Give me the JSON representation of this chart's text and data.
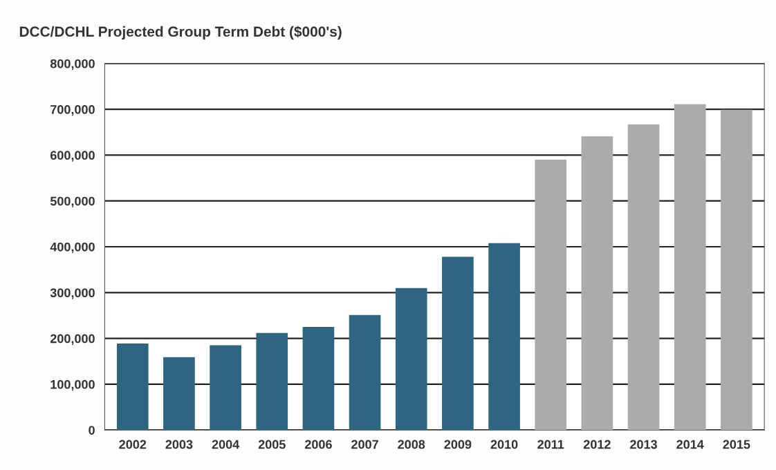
{
  "chart_data": {
    "type": "bar",
    "title": "DCC/DCHL Projected Group Term Debt ($000's)",
    "categories": [
      "2002",
      "2003",
      "2004",
      "2005",
      "2006",
      "2007",
      "2008",
      "2009",
      "2010",
      "2011",
      "2012",
      "2013",
      "2014",
      "2015"
    ],
    "values": [
      189000,
      159000,
      185000,
      212000,
      225000,
      251000,
      310000,
      378000,
      408000,
      590000,
      641000,
      667000,
      711000,
      699000
    ],
    "colors": [
      "#2e6580",
      "#2e6580",
      "#2e6580",
      "#2e6580",
      "#2e6580",
      "#2e6580",
      "#2e6580",
      "#2e6580",
      "#2e6580",
      "#ababab",
      "#ababab",
      "#ababab",
      "#ababab",
      "#ababab"
    ],
    "ylim": [
      0,
      800000
    ],
    "yticks": [
      0,
      {
        "value": 100000,
        "label": "100,000"
      },
      {
        "value": 200000,
        "label": "200,000"
      },
      {
        "value": 300000,
        "label": "300,000"
      },
      {
        "value": 400000,
        "label": "400,000"
      },
      {
        "value": 500000,
        "label": "500,000"
      },
      {
        "value": 600000,
        "label": "600,000"
      },
      {
        "value": 700000,
        "label": "700,000"
      },
      {
        "value": 800000,
        "label": "800,000"
      }
    ],
    "grid": "y"
  }
}
